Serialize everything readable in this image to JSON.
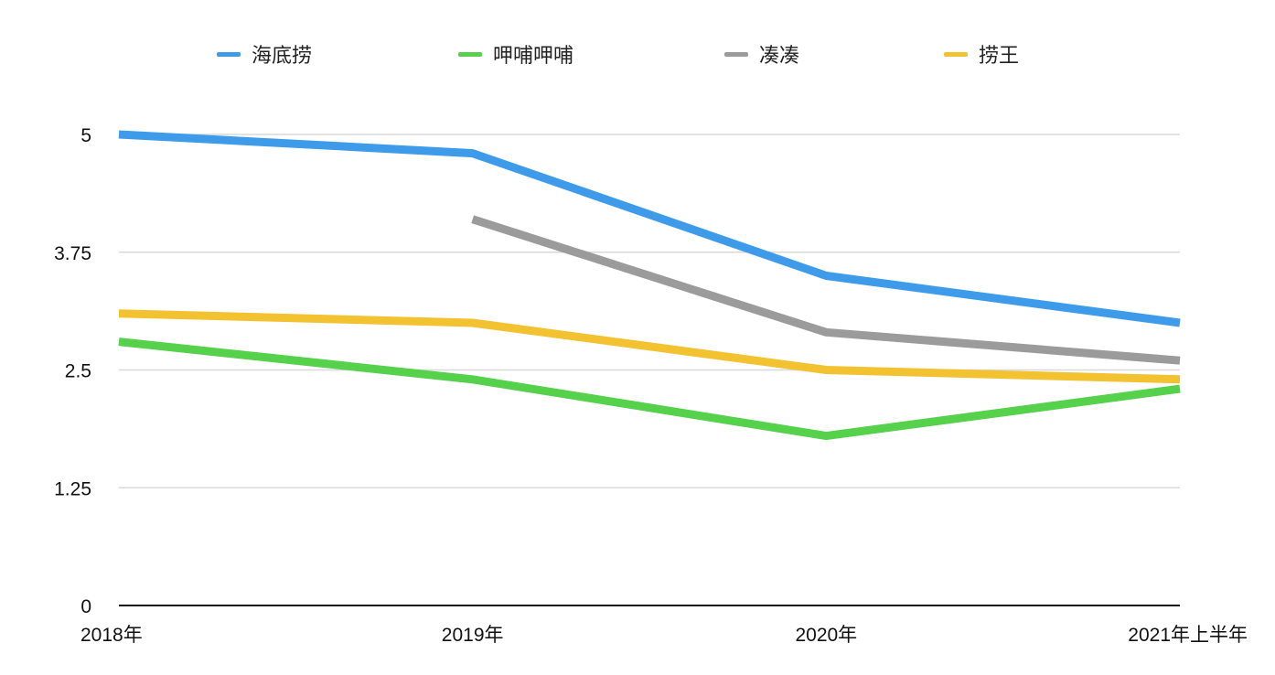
{
  "chart_data": {
    "type": "line",
    "categories": [
      "2018年",
      "2019年",
      "2020年",
      "2021年上半年"
    ],
    "ylim": [
      0,
      5
    ],
    "yticks": [
      "0",
      "1.25",
      "2.5",
      "3.75",
      "5"
    ],
    "grid": true,
    "legend_position": "top",
    "series": [
      {
        "name": "海底捞",
        "color": "#3d9be9",
        "values": [
          5.0,
          4.8,
          3.5,
          3.0
        ]
      },
      {
        "name": "呷哺呷哺",
        "color": "#55d14c",
        "values": [
          2.8,
          2.4,
          1.8,
          2.3
        ]
      },
      {
        "name": "凑凑",
        "color": "#9b9b9b",
        "values": [
          null,
          4.1,
          2.9,
          2.6
        ]
      },
      {
        "name": "捞王",
        "color": "#f2c230",
        "values": [
          3.1,
          3.0,
          2.5,
          2.4
        ]
      }
    ]
  }
}
